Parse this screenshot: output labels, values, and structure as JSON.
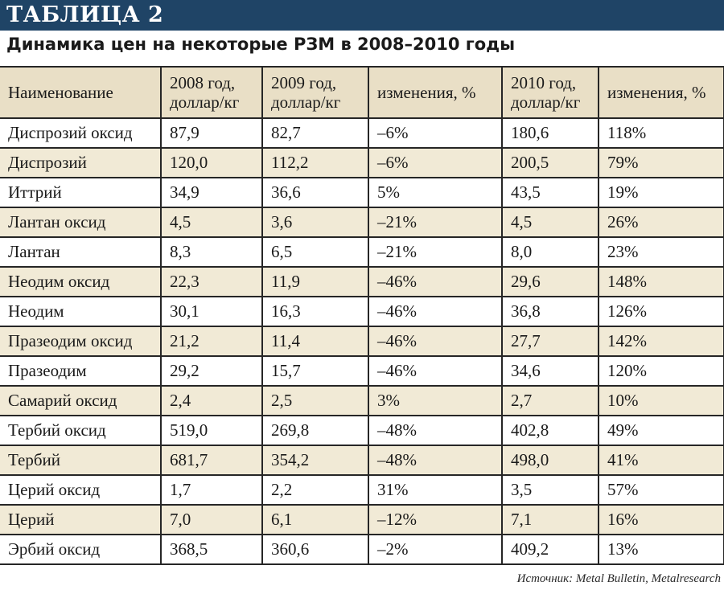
{
  "banner": {
    "title": "ТАБЛИЦА 2"
  },
  "subtitle": "Динамика цен на некоторые РЗМ в 2008–2010 годы",
  "table": {
    "headers": [
      "Наименование",
      "2008 год,\nдоллар/кг",
      "2009 год,\nдоллар/кг",
      "изменения, %",
      "2010 год,\nдоллар/кг",
      "изменения, %"
    ],
    "rows": [
      [
        "Диспрозий оксид",
        "87,9",
        "82,7",
        "–6%",
        "180,6",
        "118%"
      ],
      [
        "Диспрозий",
        "120,0",
        "112,2",
        "–6%",
        "200,5",
        "79%"
      ],
      [
        "Иттрий",
        "34,9",
        "36,6",
        "5%",
        "43,5",
        "19%"
      ],
      [
        "Лантан оксид",
        "4,5",
        "3,6",
        "–21%",
        "4,5",
        "26%"
      ],
      [
        "Лантан",
        "8,3",
        "6,5",
        "–21%",
        "8,0",
        "23%"
      ],
      [
        "Неодим оксид",
        "22,3",
        "11,9",
        "–46%",
        "29,6",
        "148%"
      ],
      [
        "Неодим",
        "30,1",
        "16,3",
        "–46%",
        "36,8",
        "126%"
      ],
      [
        "Празеодим оксид",
        "21,2",
        "11,4",
        "–46%",
        "27,7",
        "142%"
      ],
      [
        "Празеодим",
        "29,2",
        "15,7",
        "–46%",
        "34,6",
        "120%"
      ],
      [
        "Самарий оксид",
        "2,4",
        "2,5",
        "3%",
        "2,7",
        "10%"
      ],
      [
        "Тербий оксид",
        "519,0",
        "269,8",
        "–48%",
        "402,8",
        "49%"
      ],
      [
        "Тербий",
        "681,7",
        "354,2",
        "–48%",
        "498,0",
        "41%"
      ],
      [
        "Церий оксид",
        "1,7",
        "2,2",
        "31%",
        "3,5",
        "57%"
      ],
      [
        "Церий",
        "7,0",
        "6,1",
        "–12%",
        "7,1",
        "16%"
      ],
      [
        "Эрбий оксид",
        "368,5",
        "360,6",
        "–2%",
        "409,2",
        "13%"
      ]
    ]
  },
  "source": "Источник: Metal Bulletin, Metalresearch",
  "colors": {
    "banner": "#1f4466",
    "header_bg": "#e9dfc6",
    "stripe_bg": "#f1ead6"
  }
}
